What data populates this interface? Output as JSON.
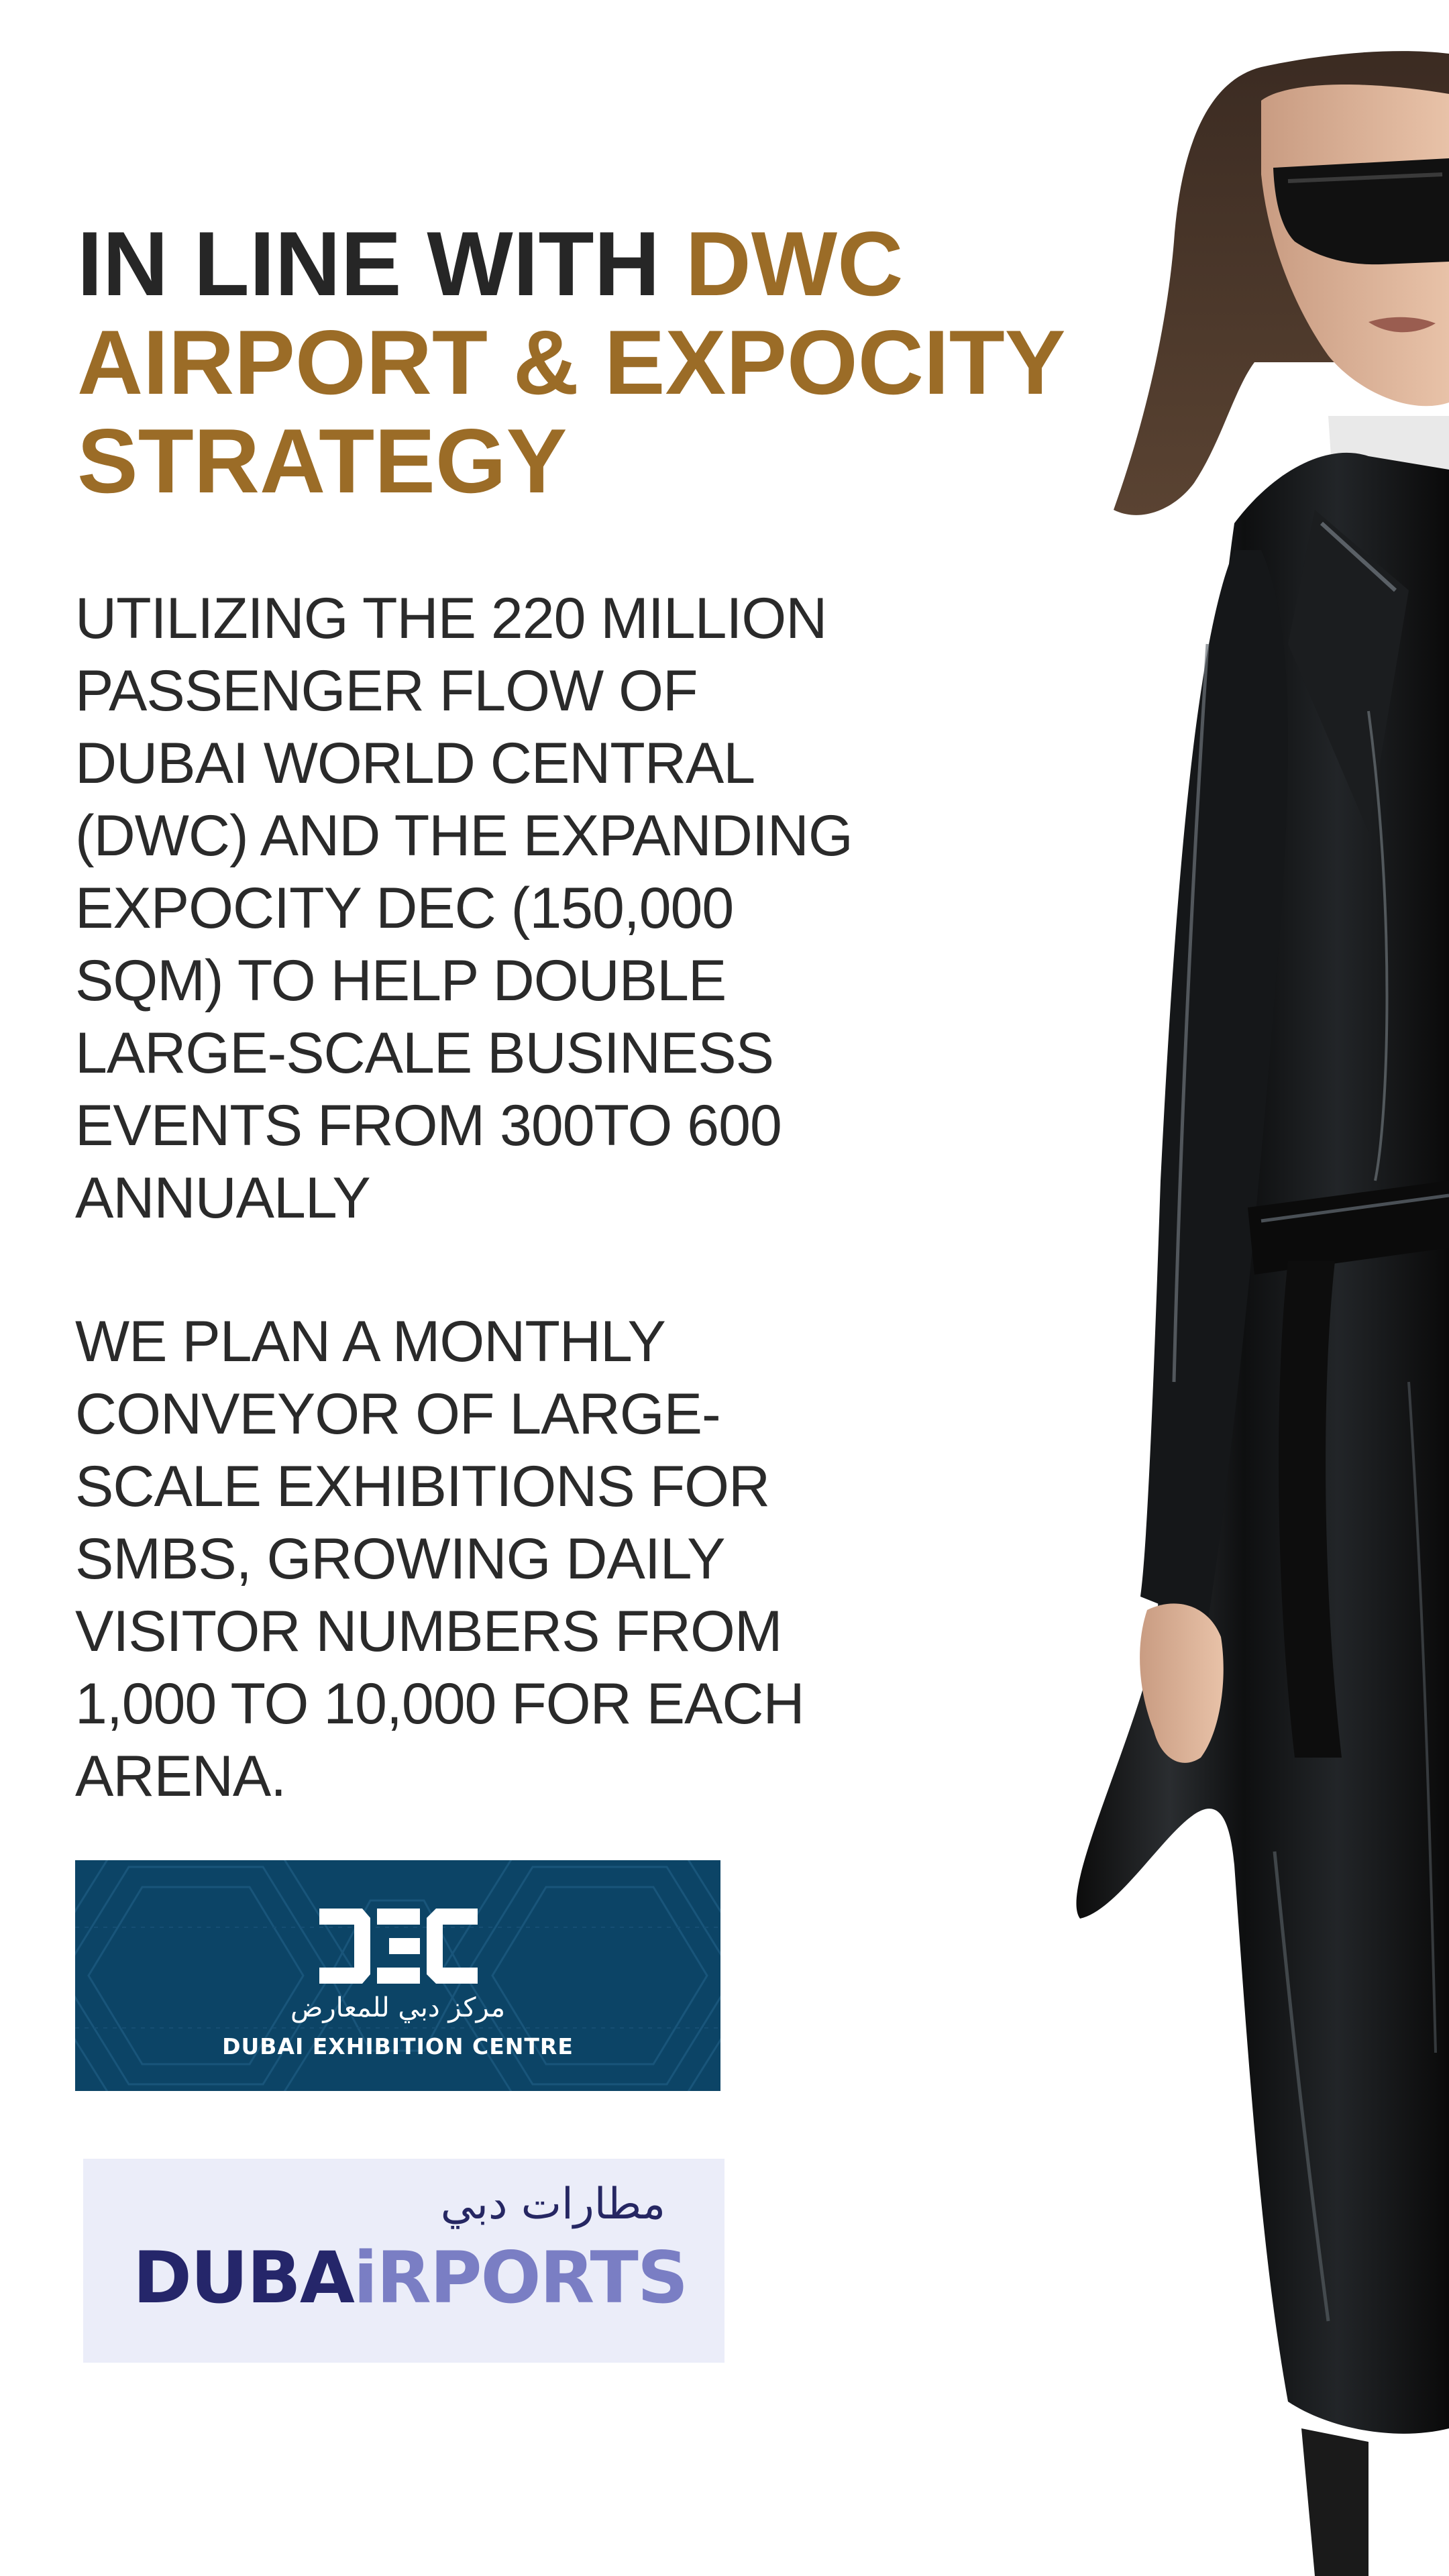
{
  "headline": {
    "part1": "IN LINE WITH ",
    "part2": "DWC",
    "line2": "AIRPORT & EXPOCITY",
    "line3": "STRATEGY"
  },
  "paragraph_1": {
    "lines": [
      "UTILIZING THE 220 MILLION",
      "PASSENGER FLOW OF",
      "DUBAI WORLD CENTRAL",
      "(DWC) AND THE EXPANDING",
      "EXPOCITY DEC (150,000",
      "SQM) TO HELP DOUBLE",
      "LARGE-SCALE BUSINESS",
      "EVENTS FROM 300TO 600",
      "ANNUALLY"
    ]
  },
  "paragraph_2": {
    "lines": [
      "WE PLAN A MONTHLY",
      "CONVEYOR OF LARGE-",
      "SCALE EXHIBITIONS FOR",
      "SMBS, GROWING DAILY",
      "VISITOR NUMBERS FROM",
      "1,000 TO 10,000 FOR EACH",
      "ARENA."
    ]
  },
  "dec_logo": {
    "arabic": "مركز دبي للمعارض",
    "english": "DUBAI EXHIBITION CENTRE"
  },
  "dubai_airports_logo": {
    "arabic": "مطارات دبي",
    "word_dark": "DUBA",
    "word_light": "iRPORTS"
  },
  "colors": {
    "headline_dark": "#262626",
    "headline_accent": "#9b6c27",
    "body_text": "#2a2a2a",
    "dec_background": "#0c4466",
    "airports_background": "#ebedf9",
    "airports_navy": "#25266a",
    "airports_lavender": "#7a7ec4"
  }
}
